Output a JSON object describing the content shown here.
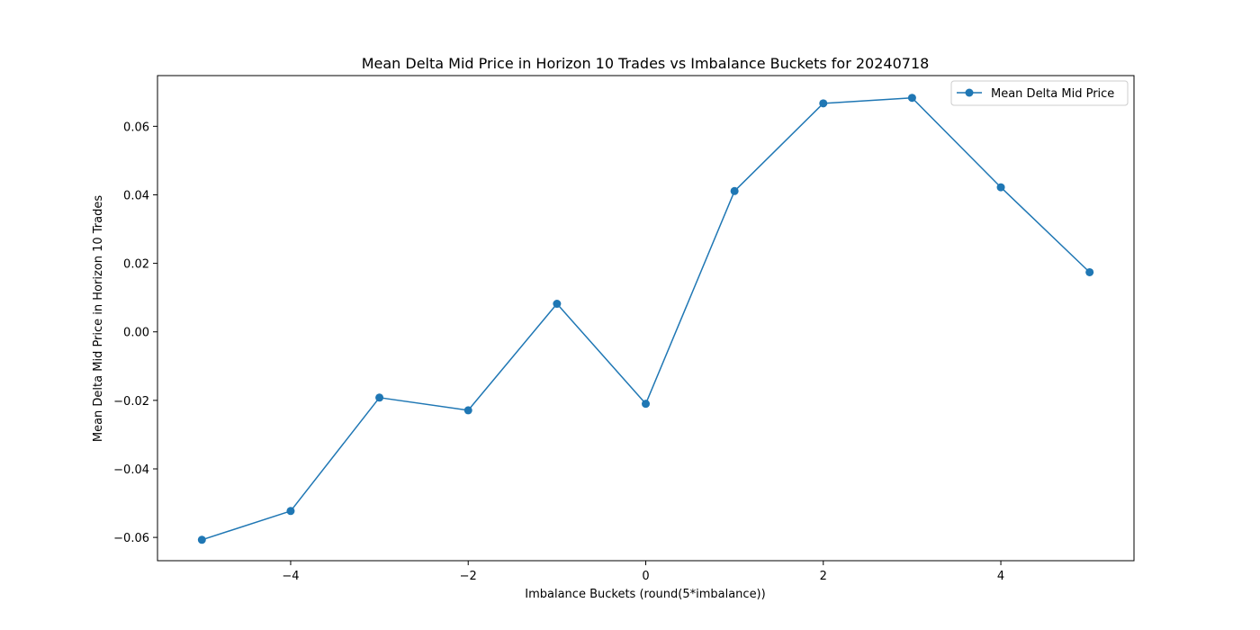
{
  "chart_data": {
    "type": "line",
    "title": "Mean Delta Mid Price in Horizon 10 Trades vs Imbalance Buckets for 20240718",
    "xlabel": "Imbalance Buckets (round(5*imbalance))",
    "ylabel": "Mean Delta Mid Price in Horizon 10 Trades",
    "xlim": [
      -5.5,
      5.5
    ],
    "ylim": [
      -0.0668,
      0.0748
    ],
    "x_ticks": [
      -4,
      -2,
      0,
      2,
      4
    ],
    "x_tick_labels": [
      "−4",
      "−2",
      "0",
      "2",
      "4"
    ],
    "y_ticks": [
      -0.06,
      -0.04,
      -0.02,
      0.0,
      0.02,
      0.04,
      0.06
    ],
    "y_tick_labels": [
      "−0.06",
      "−0.04",
      "−0.02",
      "0.00",
      "0.02",
      "0.04",
      "0.06"
    ],
    "grid": false,
    "legend_position": "top-right",
    "series": [
      {
        "name": "Mean Delta Mid Price",
        "color": "#1f77b4",
        "marker": "circle",
        "x": [
          -5,
          -4,
          -3,
          -2,
          -1,
          0,
          1,
          2,
          3,
          4,
          5
        ],
        "y": [
          -0.0607,
          -0.0523,
          -0.0192,
          -0.0229,
          0.0082,
          -0.021,
          0.0411,
          0.0667,
          0.0683,
          0.0422,
          0.0174
        ]
      }
    ]
  }
}
